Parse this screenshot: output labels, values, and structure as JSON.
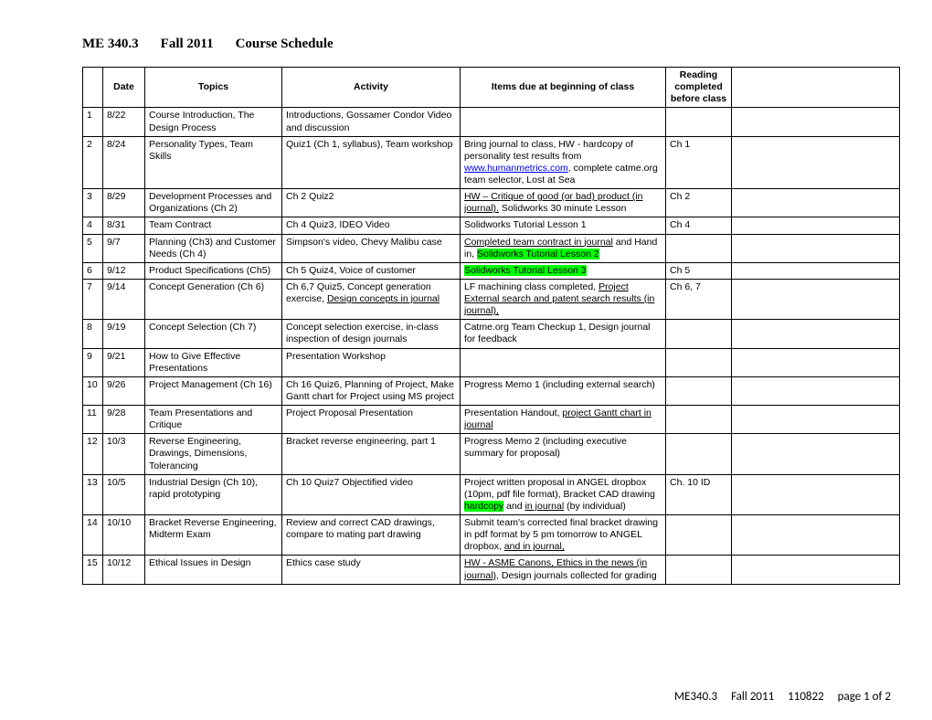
{
  "title": {
    "course": "ME 340.3",
    "term": "Fall 2011",
    "label": "Course Schedule"
  },
  "headers": {
    "date": "Date",
    "topics": "Topics",
    "activity": "Activity",
    "due": "Items due at beginning of class",
    "reading": "Reading completed before class"
  },
  "rows": [
    {
      "n": "1",
      "date": "8/22",
      "topics": "Course Introduction, The Design Process",
      "activity": "Introductions, Gossamer Condor Video and discussion",
      "due": "",
      "reading": ""
    },
    {
      "n": "2",
      "date": "8/24",
      "topics": "Personality Types, Team Skills",
      "activity": "Quiz1 (Ch 1, syllabus),  Team workshop",
      "due_parts": [
        {
          "t": "Bring journal to class, HW - hardcopy of personality test results from "
        },
        {
          "t": "www.humanmetrics.com",
          "cls": "link"
        },
        {
          "t": ", complete catme.org team selector, Lost at Sea"
        }
      ],
      "reading": "Ch 1"
    },
    {
      "n": "3",
      "date": "8/29",
      "topics": "Development Processes and Organizations (Ch 2)",
      "activity": "Ch 2 Quiz2",
      "due_parts": [
        {
          "t": "HW – Critique of good (or bad) product (in journal).",
          "cls": "u"
        },
        {
          "t": "  Solidworks 30 minute Lesson"
        }
      ],
      "reading": "Ch 2"
    },
    {
      "n": "4",
      "date": "8/31",
      "topics": "Team Contract",
      "activity": "Ch 4 Quiz3,  IDEO Video",
      "due": "Solidworks Tutorial Lesson 1",
      "reading": "Ch  4"
    },
    {
      "n": "5",
      "date": "9/7",
      "topics": "Planning (Ch3) and Customer Needs (Ch 4)",
      "activity": "Simpson's video, Chevy Malibu case",
      "due_parts": [
        {
          "t": "Completed team contract in journal",
          "cls": "u"
        },
        {
          "t": " and Hand in, "
        },
        {
          "t": "Solidworks Tutorial Lesson 2",
          "cls": "hl"
        }
      ],
      "reading": ""
    },
    {
      "n": "6",
      "date": "9/12",
      "topics": "Product Specifications (Ch5)",
      "activity": "Ch 5 Quiz4, Voice of customer",
      "due_parts": [
        {
          "t": "Solidworks Tutorial Lesson 3",
          "cls": "hl"
        }
      ],
      "reading": "Ch 5"
    },
    {
      "n": "7",
      "date": "9/14",
      "topics": "Concept Generation (Ch 6)",
      "activity_parts": [
        {
          "t": "Ch 6,7 Quiz5, Concept generation exercise, "
        },
        {
          "t": "Design concepts in journal",
          "cls": "u"
        }
      ],
      "due_parts": [
        {
          "t": "LF machining class completed, "
        },
        {
          "t": "Project External search and patent search results (in journal),",
          "cls": "u"
        }
      ],
      "reading": "Ch 6, 7"
    },
    {
      "n": "8",
      "date": "9/19",
      "topics": "Concept Selection (Ch 7)",
      "activity": "Concept selection exercise,  in-class inspection of design journals",
      "due": "Catme.org Team Checkup 1, Design journal for feedback",
      "reading": ""
    },
    {
      "n": "9",
      "date": "9/21",
      "topics": "How to Give Effective Presentations",
      "activity": "Presentation Workshop",
      "due": "",
      "reading": ""
    },
    {
      "n": "10",
      "date": "9/26",
      "topics": "Project Management (Ch 16)",
      "activity": "Ch 16 Quiz6, Planning of Project, Make Gantt chart for Project using MS project",
      "due": "Progress Memo 1 (including external search)",
      "reading": ""
    },
    {
      "n": "11",
      "date": "9/28",
      "topics": "Team Presentations and Critique",
      "activity": "Project Proposal Presentation",
      "due_parts": [
        {
          "t": "Presentation Handout, "
        },
        {
          "t": "project Gantt chart in journal",
          "cls": "u"
        }
      ],
      "reading": ""
    },
    {
      "n": "12",
      "date": "10/3",
      "topics": "Reverse Engineering, Drawings, Dimensions, Tolerancing",
      "activity": "Bracket reverse engineering, part 1",
      "due": "Progress Memo 2 (including executive summary for proposal)",
      "reading": ""
    },
    {
      "n": "13",
      "date": "10/5",
      "topics": "Industrial Design (Ch 10), rapid prototyping",
      "activity": "Ch 10 Quiz7   Objectified video",
      "due_parts": [
        {
          "t": "Project written proposal in ANGEL dropbox (10pm, pdf file format), Bracket CAD drawing "
        },
        {
          "t": "hardcopy",
          "cls": "hl"
        },
        {
          "t": " and "
        },
        {
          "t": "in journal",
          "cls": "u"
        },
        {
          "t": " (by individual)"
        }
      ],
      "reading": "Ch. 10 ID"
    },
    {
      "n": "14",
      "date": "10/10",
      "topics": "Bracket Reverse Engineering, Midterm Exam",
      "activity": "Review and correct CAD drawings, compare to mating part drawing",
      "due_parts": [
        {
          "t": "Submit team's corrected final bracket drawing in pdf format by 5 pm tomorrow to ANGEL dropbox, "
        },
        {
          "t": "and in journal,",
          "cls": "u"
        }
      ],
      "reading": ""
    },
    {
      "n": "15",
      "date": "10/12",
      "topics": "Ethical Issues in Design",
      "activity": "Ethics case study",
      "due_parts": [
        {
          "t": "HW -  ASME Canons, Ethics in the news (in journal),",
          "cls": "u"
        },
        {
          "t": " Design journals collected for grading"
        }
      ],
      "reading": ""
    }
  ],
  "footer": {
    "course": "ME340.3",
    "term": "Fall 2011",
    "code": "110822",
    "page": "page 1 of 2"
  }
}
